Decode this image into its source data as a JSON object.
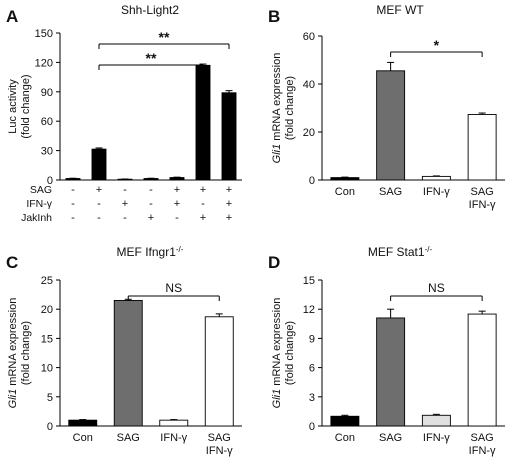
{
  "panels": [
    {
      "letter": "A",
      "title": "Shh-Light2",
      "ylabel_line1": "Luc activity",
      "ylabel_line2": "(fold change)",
      "ylabel_italic": "",
      "ylim": [
        0,
        150
      ],
      "yticks": [
        "0",
        "30",
        "60",
        "90",
        "120",
        "150"
      ],
      "categories": [],
      "values": [
        1.5,
        31.5,
        0.8,
        1.5,
        2.5,
        117,
        89
      ],
      "errors": [
        0.3,
        1.2,
        0.2,
        0.3,
        0.4,
        1.3,
        2.2
      ],
      "bar_colors": [
        "#000000",
        "#000000",
        "#000000",
        "#000000",
        "#000000",
        "#000000",
        "#000000"
      ],
      "condition_rows": [
        {
          "label": "SAG",
          "marks": [
            "-",
            "+",
            "-",
            "-",
            "+",
            "+",
            "+"
          ]
        },
        {
          "label": "IFN-γ",
          "marks": [
            "-",
            "-",
            "+",
            "-",
            "+",
            "-",
            "+"
          ]
        },
        {
          "label": "JakInh",
          "marks": [
            "-",
            "-",
            "-",
            "+",
            "-",
            "+",
            "+"
          ]
        }
      ],
      "brackets": [
        {
          "from": 1,
          "to": 6,
          "text": "**"
        },
        {
          "from": 1,
          "to": 5,
          "text": "**"
        }
      ]
    },
    {
      "letter": "B",
      "title": "MEF WT",
      "ylabel_italic": "Gli1",
      "ylabel_line1": " mRNA expression",
      "ylabel_line2": "(fold change)",
      "ylim": [
        0,
        60
      ],
      "yticks": [
        "0",
        "20",
        "40",
        "60"
      ],
      "categories": [
        "Con",
        "SAG",
        "IFN-γ",
        "SAG|IFN-γ"
      ],
      "values": [
        1,
        45.5,
        1.5,
        27.3
      ],
      "errors": [
        0.2,
        3.5,
        0.2,
        0.6
      ],
      "bar_colors": [
        "#000000",
        "#6e6e6e",
        "#ffffff",
        "#ffffff"
      ],
      "brackets": [
        {
          "from": 1,
          "to": 3,
          "text": "*"
        }
      ]
    },
    {
      "letter": "C",
      "title": "MEF Ifngr1",
      "title_sup": "-/-",
      "ylabel_italic": "Gli1",
      "ylabel_line1": " mRNA expression",
      "ylabel_line2": "(fold change)",
      "ylim": [
        0,
        25
      ],
      "yticks": [
        "0",
        "5",
        "10",
        "15",
        "20",
        "25"
      ],
      "categories": [
        "Con",
        "SAG",
        "IFN-γ",
        "SAG|IFN-γ"
      ],
      "values": [
        1,
        21.5,
        1,
        18.7
      ],
      "errors": [
        0.1,
        0.2,
        0.1,
        0.5
      ],
      "bar_colors": [
        "#000000",
        "#6e6e6e",
        "#ffffff",
        "#ffffff"
      ],
      "brackets": [
        {
          "from": 1,
          "to": 3,
          "text": "NS"
        }
      ]
    },
    {
      "letter": "D",
      "title": "MEF Stat1",
      "title_sup": "-/-",
      "ylabel_italic": "Gli1",
      "ylabel_line1": " mRNA expression",
      "ylabel_line2": "(fold change)",
      "ylim": [
        0,
        15
      ],
      "yticks": [
        "0",
        "3",
        "6",
        "9",
        "12",
        "15"
      ],
      "categories": [
        "Con",
        "SAG",
        "IFN-γ",
        "SAG|IFN-γ"
      ],
      "values": [
        1,
        11.1,
        1.1,
        11.5
      ],
      "errors": [
        0.1,
        0.9,
        0.1,
        0.3
      ],
      "bar_colors": [
        "#000000",
        "#6e6e6e",
        "#e0e0e0",
        "#ffffff"
      ],
      "brackets": [
        {
          "from": 1,
          "to": 3,
          "text": "NS"
        }
      ]
    }
  ],
  "chart_data": [
    {
      "type": "bar",
      "title": "Shh-Light2",
      "ylabel": "Luc activity (fold change)",
      "ylim": [
        0,
        150
      ],
      "categories": [
        "-/-/-",
        "+/-/-",
        "-/+/-",
        "-/-/+",
        "+/+/-",
        "+/-/+",
        "+/+/+"
      ],
      "condition_labels": [
        "SAG",
        "IFN-γ",
        "JakInh"
      ],
      "values": [
        1.5,
        31.5,
        0.8,
        1.5,
        2.5,
        117,
        89
      ],
      "errors": [
        0.3,
        1.2,
        0.2,
        0.3,
        0.4,
        1.3,
        2.2
      ],
      "annotations": [
        "**",
        "**"
      ]
    },
    {
      "type": "bar",
      "title": "MEF WT",
      "ylabel": "Gli1 mRNA expression (fold change)",
      "ylim": [
        0,
        60
      ],
      "categories": [
        "Con",
        "SAG",
        "IFN-γ",
        "SAG IFN-γ"
      ],
      "values": [
        1,
        45.5,
        1.5,
        27.3
      ],
      "errors": [
        0.2,
        3.5,
        0.2,
        0.6
      ],
      "annotations": [
        "*"
      ]
    },
    {
      "type": "bar",
      "title": "MEF Ifngr1-/-",
      "ylabel": "Gli1 mRNA expression (fold change)",
      "ylim": [
        0,
        25
      ],
      "categories": [
        "Con",
        "SAG",
        "IFN-γ",
        "SAG IFN-γ"
      ],
      "values": [
        1,
        21.5,
        1,
        18.7
      ],
      "errors": [
        0.1,
        0.2,
        0.1,
        0.5
      ],
      "annotations": [
        "NS"
      ]
    },
    {
      "type": "bar",
      "title": "MEF Stat1-/-",
      "ylabel": "Gli1 mRNA expression (fold change)",
      "ylim": [
        0,
        15
      ],
      "categories": [
        "Con",
        "SAG",
        "IFN-γ",
        "SAG IFN-γ"
      ],
      "values": [
        1,
        11.1,
        1.1,
        11.5
      ],
      "errors": [
        0.1,
        0.9,
        0.1,
        0.3
      ],
      "annotations": [
        "NS"
      ]
    }
  ]
}
